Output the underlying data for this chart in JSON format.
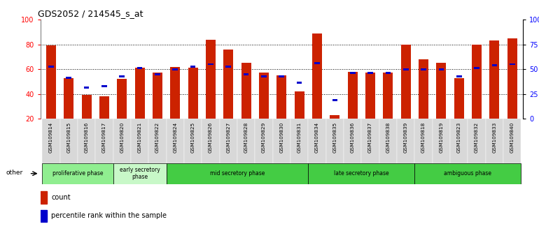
{
  "title": "GDS2052 / 214545_s_at",
  "samples": [
    "GSM109814",
    "GSM109815",
    "GSM109816",
    "GSM109817",
    "GSM109820",
    "GSM109821",
    "GSM109822",
    "GSM109824",
    "GSM109825",
    "GSM109826",
    "GSM109827",
    "GSM109828",
    "GSM109829",
    "GSM109830",
    "GSM109831",
    "GSM109834",
    "GSM109835",
    "GSM109836",
    "GSM109837",
    "GSM109838",
    "GSM109839",
    "GSM109818",
    "GSM109819",
    "GSM109823",
    "GSM109832",
    "GSM109833",
    "GSM109840"
  ],
  "count_values": [
    79,
    53,
    39,
    38,
    52,
    61,
    57,
    62,
    61,
    84,
    76,
    65,
    57,
    55,
    42,
    89,
    23,
    58,
    57,
    57,
    80,
    68,
    65,
    53,
    80,
    83,
    85
  ],
  "percentile_values": [
    62,
    53,
    45,
    46,
    54,
    61,
    56,
    60,
    62,
    64,
    62,
    56,
    54,
    54,
    49,
    65,
    35,
    57,
    57,
    57,
    60,
    60,
    60,
    54,
    61,
    63,
    64
  ],
  "phases": [
    {
      "label": "proliferative phase",
      "start": 0,
      "end": 4,
      "color": "#90EE90"
    },
    {
      "label": "early secretory\nphase",
      "start": 4,
      "end": 7,
      "color": "#c8f8c8"
    },
    {
      "label": "mid secretory phase",
      "start": 7,
      "end": 15,
      "color": "#44CC44"
    },
    {
      "label": "late secretory phase",
      "start": 15,
      "end": 21,
      "color": "#44CC44"
    },
    {
      "label": "ambiguous phase",
      "start": 21,
      "end": 27,
      "color": "#44CC44"
    }
  ],
  "ylim_left": [
    20,
    100
  ],
  "yticks_left": [
    20,
    40,
    60,
    80,
    100
  ],
  "yticks_right_vals": [
    0,
    25,
    50,
    75,
    100
  ],
  "ytick_labels_right": [
    "0",
    "25",
    "50",
    "75",
    "100%"
  ],
  "bar_color": "#CC2200",
  "percentile_color": "#0000CC",
  "plot_bg": "#ffffff",
  "fig_bg": "#ffffff",
  "tick_label_bg": "#D8D8D8",
  "other_label": "other"
}
